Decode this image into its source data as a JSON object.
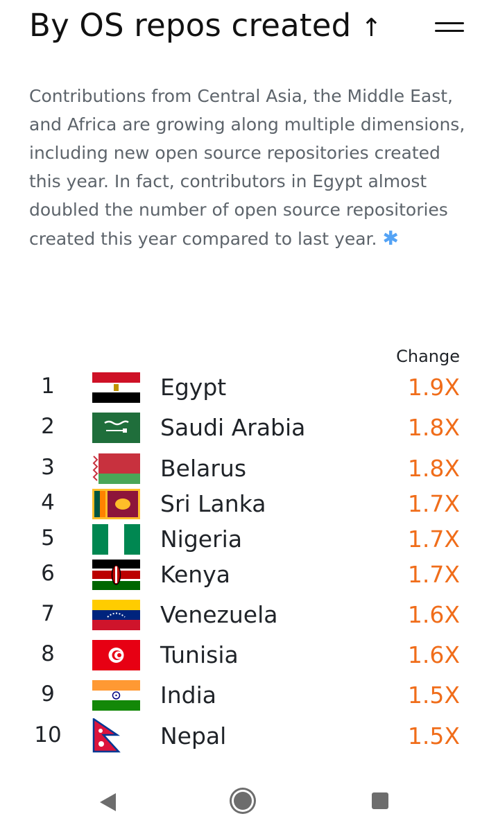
{
  "header": {
    "title": "By OS repos created",
    "sort_arrow": "↑"
  },
  "intro": {
    "text": "Contributions from Central Asia, the Middle East, and Africa are growing along multiple dimensions, including new open source repositories created this year. In fact, contributors in Egypt almost doubled the number of open source repositories created this year compared to last year.",
    "footnote_symbol": "✱"
  },
  "table": {
    "change_header": "Change",
    "rows": [
      {
        "rank": "1",
        "country": "Egypt",
        "change": "1.9X",
        "flag": "egypt-flag-icon"
      },
      {
        "rank": "2",
        "country": "Saudi Arabia",
        "change": "1.8X",
        "flag": "saudi-arabia-flag-icon"
      },
      {
        "rank": "3",
        "country": "Belarus",
        "change": "1.8X",
        "flag": "belarus-flag-icon"
      },
      {
        "rank": "4",
        "country": "Sri Lanka",
        "change": "1.7X",
        "flag": "sri-lanka-flag-icon"
      },
      {
        "rank": "5",
        "country": "Nigeria",
        "change": "1.7X",
        "flag": "nigeria-flag-icon"
      },
      {
        "rank": "6",
        "country": "Kenya",
        "change": "1.7X",
        "flag": "kenya-flag-icon"
      },
      {
        "rank": "7",
        "country": "Venezuela",
        "change": "1.6X",
        "flag": "venezuela-flag-icon"
      },
      {
        "rank": "8",
        "country": "Tunisia",
        "change": "1.6X",
        "flag": "tunisia-flag-icon"
      },
      {
        "rank": "9",
        "country": "India",
        "change": "1.5X",
        "flag": "india-flag-icon"
      },
      {
        "rank": "10",
        "country": "Nepal",
        "change": "1.5X",
        "flag": "nepal-flag-icon"
      }
    ]
  },
  "colors": {
    "change_accent": "#f06d1a",
    "body_text": "#5d646b",
    "footnote": "#54a3f5"
  },
  "nav": {
    "icons": [
      "back-icon",
      "home-icon",
      "recent-apps-icon"
    ]
  }
}
